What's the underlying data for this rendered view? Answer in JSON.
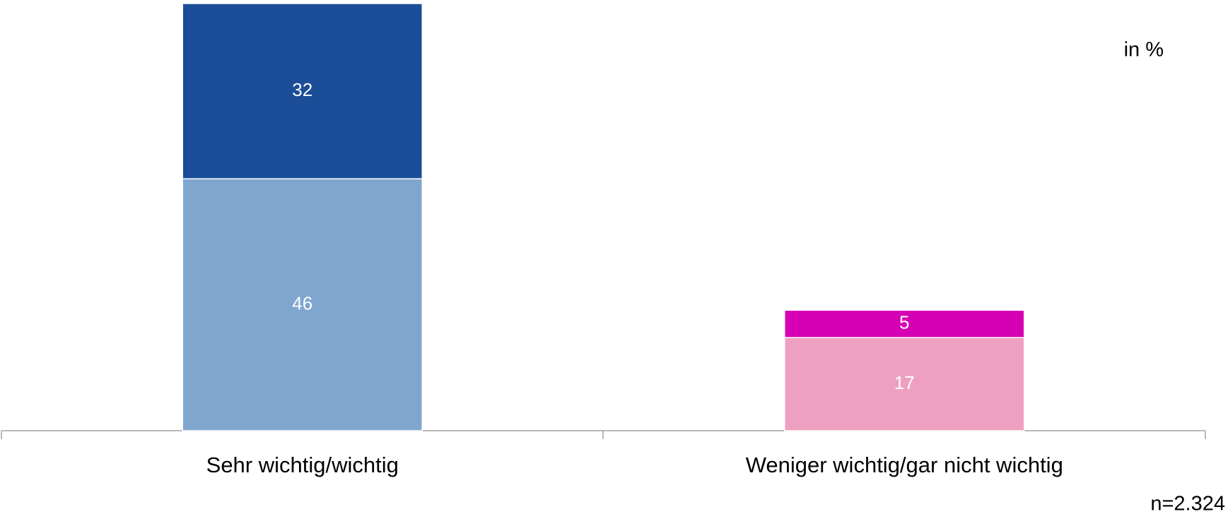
{
  "chart_data": {
    "type": "stacked_bar",
    "categories": [
      "Sehr wichtig/wichtig",
      "Weniger wichtig/gar nicht wichtig"
    ],
    "series": [
      {
        "colors": [
          "#7fa6cf",
          "#eea0c0"
        ],
        "values": [
          46,
          17
        ]
      },
      {
        "colors": [
          "#1b4d98",
          "#d600b4"
        ],
        "values": [
          32,
          5
        ]
      }
    ],
    "annotations": [
      "in %",
      "n=2.324"
    ]
  }
}
